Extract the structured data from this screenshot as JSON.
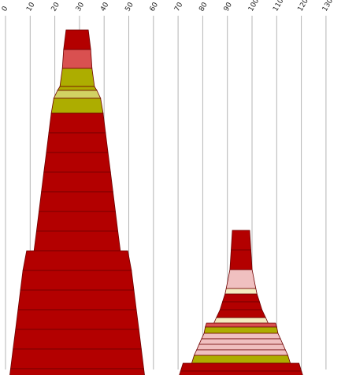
{
  "chart_data": {
    "type": "stacked-profile",
    "x_ticks": [
      "0",
      "10",
      "20",
      "30",
      "40",
      "50",
      "60",
      "70",
      "80",
      "90",
      "100",
      "110",
      "120",
      "130"
    ],
    "xlim": [
      0,
      130
    ],
    "grid": "vertical",
    "palette": {
      "red": "#b30000",
      "salmon": "#d95050",
      "olive": "#adad00",
      "khaki": "#d2d264",
      "pink": "#f0c0c0",
      "cream": "#f4ecc0"
    },
    "profiles": [
      {
        "name": "",
        "bands": [
          {
            "top_w": 9,
            "bot_w": 11,
            "color": "red"
          },
          {
            "top_w": 11,
            "bot_w": 12,
            "color": "salmon"
          },
          {
            "top_w": 12,
            "bot_w": 14,
            "color": "olive"
          },
          {
            "top_w": 14,
            "bot_w": 16,
            "color": "olive"
          },
          {
            "top_w": 16,
            "bot_w": 19,
            "color": "khaki"
          },
          {
            "top_w": 19,
            "bot_w": 21,
            "color": "olive"
          },
          {
            "top_w": 21,
            "bot_w": 23,
            "color": "red"
          },
          {
            "top_w": 23,
            "bot_w": 25,
            "color": "red"
          },
          {
            "top_w": 25,
            "bot_w": 27,
            "color": "red"
          },
          {
            "top_w": 27,
            "bot_w": 29,
            "color": "red"
          },
          {
            "top_w": 29,
            "bot_w": 31,
            "color": "red"
          },
          {
            "top_w": 31,
            "bot_w": 33,
            "color": "red"
          },
          {
            "top_w": 33,
            "bot_w": 35,
            "color": "red"
          },
          {
            "top_w": 41,
            "bot_w": 44,
            "color": "red"
          },
          {
            "top_w": 44,
            "bot_w": 46,
            "color": "red"
          },
          {
            "top_w": 46,
            "bot_w": 48,
            "color": "red"
          },
          {
            "top_w": 48,
            "bot_w": 50,
            "color": "red"
          },
          {
            "top_w": 50,
            "bot_w": 52,
            "color": "red"
          },
          {
            "top_w": 52,
            "bot_w": 54,
            "color": "red"
          },
          {
            "top_w": 54,
            "bot_w": 56,
            "color": "red"
          }
        ]
      },
      {
        "name": "",
        "bands": [
          {
            "top_w": 7,
            "bot_w": 8,
            "color": "red"
          },
          {
            "top_w": 8,
            "bot_w": 9,
            "color": "red"
          },
          {
            "top_w": 9,
            "bot_w": 12,
            "color": "pink"
          },
          {
            "top_w": 12,
            "bot_w": 13,
            "color": "cream"
          },
          {
            "top_w": 13,
            "bot_w": 15,
            "color": "red"
          },
          {
            "top_w": 15,
            "bot_w": 17,
            "color": "red"
          },
          {
            "top_w": 17,
            "bot_w": 20,
            "color": "red"
          },
          {
            "top_w": 20,
            "bot_w": 22,
            "color": "cream"
          },
          {
            "top_w": 28,
            "bot_w": 29,
            "color": "salmon"
          },
          {
            "top_w": 29,
            "bot_w": 30,
            "color": "olive"
          },
          {
            "top_w": 30,
            "bot_w": 32,
            "color": "pink"
          },
          {
            "top_w": 32,
            "bot_w": 34,
            "color": "pink"
          },
          {
            "top_w": 34,
            "bot_w": 36,
            "color": "pink"
          },
          {
            "top_w": 36,
            "bot_w": 38,
            "color": "pink"
          },
          {
            "top_w": 38,
            "bot_w": 40,
            "color": "olive"
          },
          {
            "top_w": 47,
            "bot_w": 49,
            "color": "red"
          },
          {
            "top_w": 49,
            "bot_w": 51,
            "color": "red"
          }
        ]
      }
    ]
  }
}
